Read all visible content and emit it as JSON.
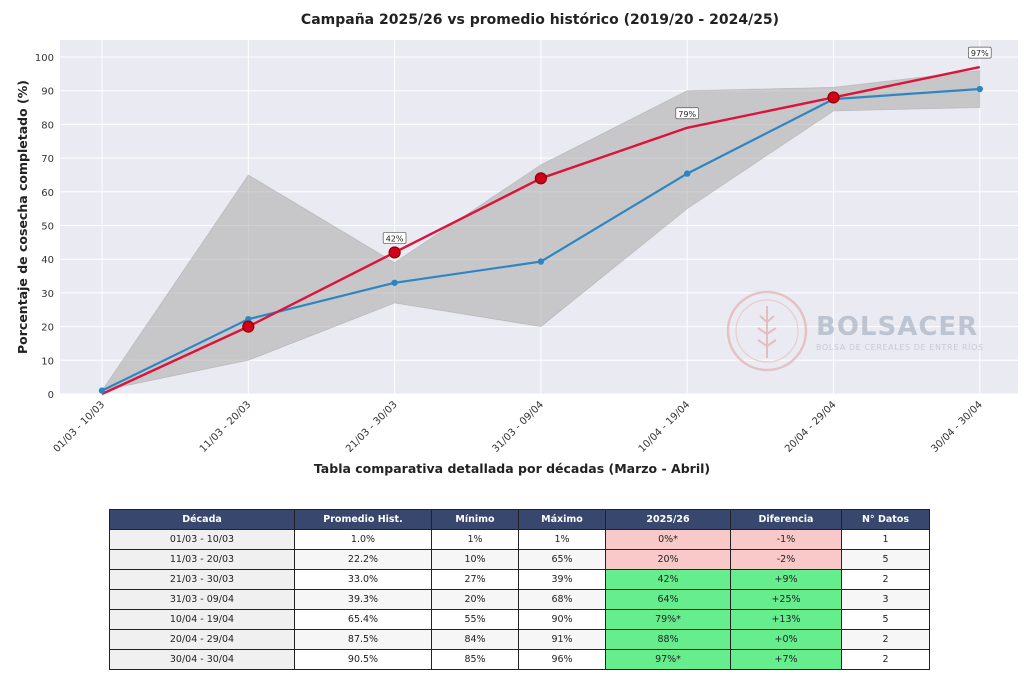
{
  "chart_data": {
    "type": "line",
    "title": "Campaña 2025/26 vs promedio histórico (2019/20 - 2024/25)",
    "ylabel": "Porcentaje de cosecha completado (%)",
    "xlabel": "",
    "ylim": [
      0,
      105
    ],
    "yticks": [
      "0",
      "10",
      "20",
      "30",
      "40",
      "50",
      "60",
      "70",
      "80",
      "90",
      "100"
    ],
    "grid": true,
    "categories": [
      "01/03 - 10/03",
      "11/03 - 20/03",
      "21/03 - 30/03",
      "31/03 - 09/04",
      "10/04 - 19/04",
      "20/04 - 29/04",
      "30/04 - 30/04"
    ],
    "band": {
      "min": [
        1,
        10,
        27,
        20,
        55,
        84,
        85
      ],
      "max": [
        1,
        65,
        39,
        68,
        90,
        91,
        96
      ]
    },
    "series": [
      {
        "values": [
          1.0,
          22.2,
          33.0,
          39.3,
          65.4,
          87.5,
          90.5
        ],
        "color": "#2e86c1"
      },
      {
        "values": [
          0,
          20,
          42,
          64,
          79,
          88,
          97
        ],
        "color": "#dc143c",
        "markers": [
          1,
          2,
          3,
          5
        ]
      }
    ],
    "annotations": [
      {
        "index": 2,
        "text": "42%"
      },
      {
        "index": 4,
        "text": "79%"
      },
      {
        "index": 6,
        "text": "97%"
      }
    ]
  },
  "watermark": {
    "name": "BOLSACER",
    "subtitle": "BOLSA DE CEREALES DE ENTRE RÍOS"
  },
  "table": {
    "title": "Tabla comparativa detallada por décadas (Marzo - Abril)",
    "headers": [
      "Década",
      "Promedio Hist.",
      "Mínimo",
      "Máximo",
      "2025/26",
      "Diferencia",
      "N° Datos"
    ],
    "rows": [
      {
        "decada": "01/03 - 10/03",
        "promedio": "1.0%",
        "minimo": "1%",
        "maximo": "1%",
        "campana": "0%*",
        "diferencia": "-1%",
        "datos": "1",
        "status": "red"
      },
      {
        "decada": "11/03 - 20/03",
        "promedio": "22.2%",
        "minimo": "10%",
        "maximo": "65%",
        "campana": "20%",
        "diferencia": "-2%",
        "datos": "5",
        "status": "red"
      },
      {
        "decada": "21/03 - 30/03",
        "promedio": "33.0%",
        "minimo": "27%",
        "maximo": "39%",
        "campana": "42%",
        "diferencia": "+9%",
        "datos": "2",
        "status": "green"
      },
      {
        "decada": "31/03 - 09/04",
        "promedio": "39.3%",
        "minimo": "20%",
        "maximo": "68%",
        "campana": "64%",
        "diferencia": "+25%",
        "datos": "3",
        "status": "green"
      },
      {
        "decada": "10/04 - 19/04",
        "promedio": "65.4%",
        "minimo": "55%",
        "maximo": "90%",
        "campana": "79%*",
        "diferencia": "+13%",
        "datos": "5",
        "status": "green"
      },
      {
        "decada": "20/04 - 29/04",
        "promedio": "87.5%",
        "minimo": "84%",
        "maximo": "91%",
        "campana": "88%",
        "diferencia": "+0%",
        "datos": "2",
        "status": "green"
      },
      {
        "decada": "30/04 - 30/04",
        "promedio": "90.5%",
        "minimo": "85%",
        "maximo": "96%",
        "campana": "97%*",
        "diferencia": "+7%",
        "datos": "2",
        "status": "green"
      }
    ],
    "colors": {
      "header": "#37476e",
      "red": "#f9c9c9",
      "green": "#66ee8e"
    }
  }
}
